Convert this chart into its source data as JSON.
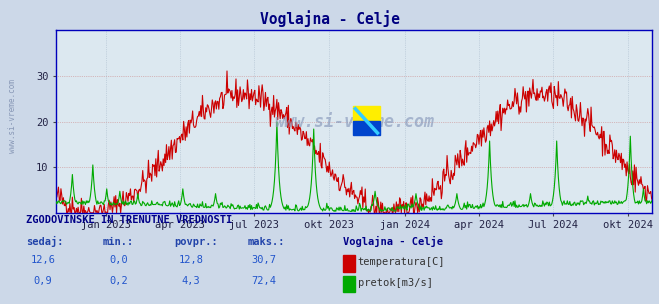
{
  "title": "Voglajna - Celje",
  "title_color": "#000080",
  "bg_color": "#d0d8e8",
  "plot_bg_color": "#e0e8f0",
  "temp_color": "#cc0000",
  "flow_color": "#00aa00",
  "ylim": [
    0,
    40
  ],
  "yticks": [
    10,
    20,
    30
  ],
  "x_tick_labels": [
    "jan 2023",
    "apr 2023",
    "jul 2023",
    "okt 2023",
    "jan 2024",
    "apr 2024",
    "Jul 2024",
    "okt 2024"
  ],
  "watermark": "www.si-vreme.com",
  "footer_title": "ZGODOVINSKE IN TRENUTNE VREDNOSTI",
  "col_headers": [
    "sedaj:",
    "min.:",
    "povpr.:",
    "maks.:"
  ],
  "col_values_temp": [
    "12,6",
    "0,0",
    "12,8",
    "30,7"
  ],
  "col_values_flow": [
    "0,9",
    "0,2",
    "4,3",
    "72,4"
  ],
  "legend_title": "Voglajna - Celje",
  "legend_temp": "temperatura[C]",
  "legend_flow": "pretok[m3/s]"
}
